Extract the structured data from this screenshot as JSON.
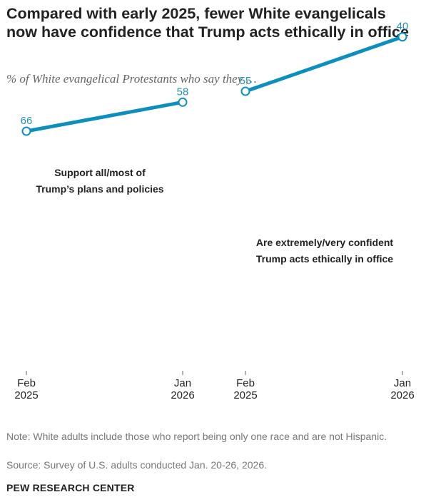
{
  "title": "Compared with early 2025, fewer White evangelicals now have confidence that Trump acts ethically in office",
  "subtitle": "% of White evangelical Protestants who say they …",
  "colors": {
    "line": "#0c8fbf",
    "label": "#2591b6",
    "text": "#222222",
    "axis": "#666666",
    "note": "#777777"
  },
  "chart_data": [
    {
      "type": "line",
      "x": [
        "Feb 2025",
        "Jan 2026"
      ],
      "series": [
        {
          "name": "Support all/most of Trump’s plans and policies",
          "values": [
            66,
            58
          ]
        }
      ],
      "series_label_lines": [
        "Support all/most of",
        "Trump’s plans and policies"
      ],
      "ticks": [
        {
          "month": "Feb",
          "year": "2025"
        },
        {
          "month": "Jan",
          "year": "2026"
        }
      ]
    },
    {
      "type": "line",
      "x": [
        "Feb 2025",
        "Jan 2026"
      ],
      "series": [
        {
          "name": "Are extremely/very confident Trump acts ethically in office",
          "values": [
            55,
            40
          ]
        }
      ],
      "series_label_lines": [
        "Are extremely/very confident",
        "Trump acts ethically in office"
      ],
      "ticks": [
        {
          "month": "Feb",
          "year": "2025"
        },
        {
          "month": "Jan",
          "year": "2026"
        }
      ]
    }
  ],
  "note": "Note: White adults include those who report being only one race and are not Hispanic.",
  "source": "Source: Survey of U.S. adults conducted Jan. 20-26, 2026.",
  "brand": "PEW RESEARCH CENTER"
}
